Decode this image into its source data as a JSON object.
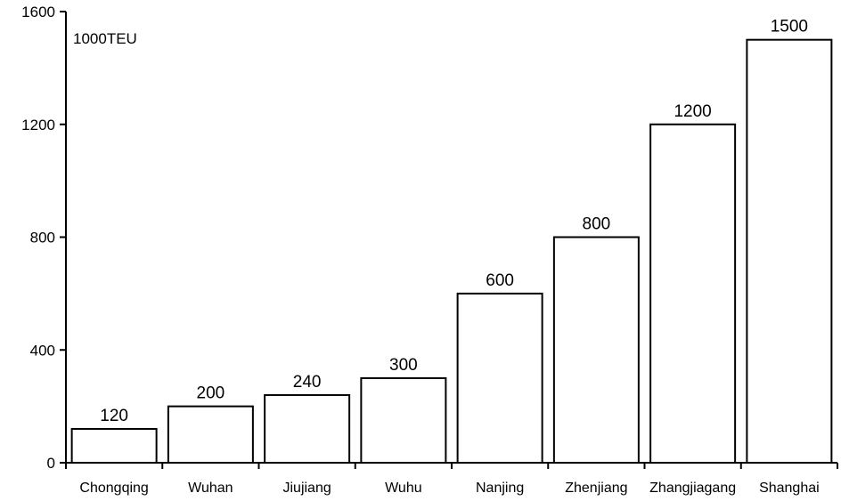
{
  "chart_data": {
    "type": "bar",
    "unit": "1000TEU",
    "categories": [
      "Chongqing",
      "Wuhan",
      "Jiujiang",
      "Wuhu",
      "Nanjing",
      "Zhenjiang",
      "Zhangjiagang",
      "Shanghai"
    ],
    "values": [
      120,
      200,
      240,
      300,
      600,
      800,
      1200,
      1500
    ],
    "ylim": [
      0,
      1600
    ],
    "yticks": [
      0,
      400,
      800,
      1200,
      1600
    ],
    "grid": false,
    "bar_fill": "#ffffff",
    "bar_stroke": "#000000"
  }
}
